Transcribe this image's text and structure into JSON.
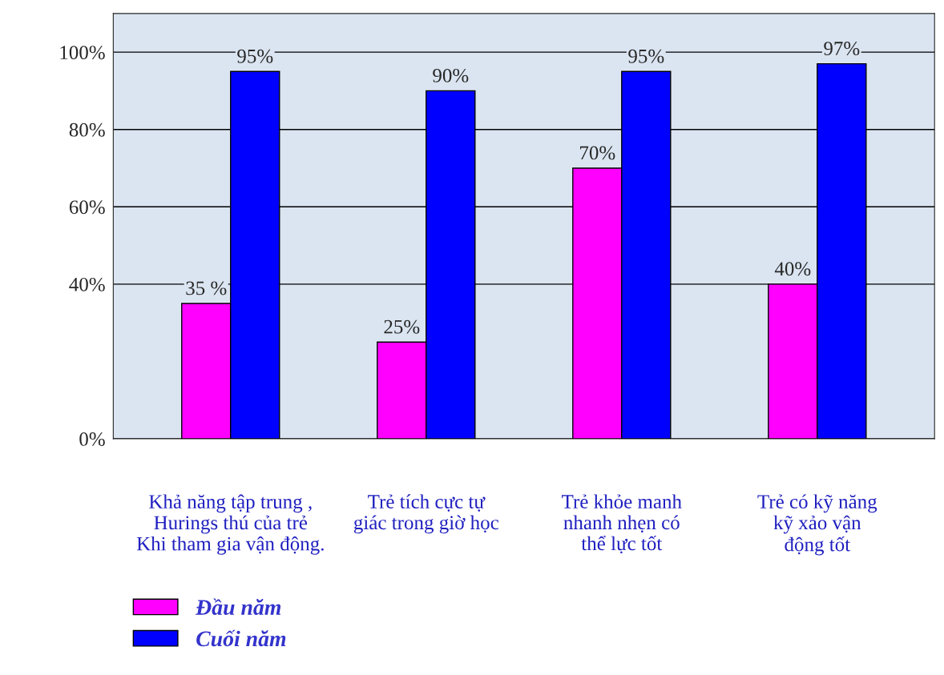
{
  "chart_data": {
    "type": "bar",
    "categories": [
      "Khả năng tập trung ,\nHurings thú của trẻ\nKhi tham gia vận động.",
      "Trẻ tích cực tự\ngiác trong giờ học",
      "Trẻ khỏe manh\nnhanh nhẹn có\nthể lực tốt",
      "Trẻ có kỹ năng\nkỹ xảo vận\nđộng tốt"
    ],
    "series": [
      {
        "name": "Đầu năm",
        "color": "#ff00ff",
        "values": [
          35,
          25,
          70,
          40
        ],
        "value_labels": [
          "35 %",
          "25%",
          "70%",
          "40%"
        ]
      },
      {
        "name": "Cuối năm",
        "color": "#0000ff",
        "values": [
          95,
          90,
          95,
          97
        ],
        "value_labels": [
          "95%",
          "90%",
          "95%",
          "97%"
        ]
      }
    ],
    "ylim": [
      0,
      110
    ],
    "yticks": [
      {
        "value": 0,
        "label": "0%"
      },
      {
        "value": 40,
        "label": "40%"
      },
      {
        "value": 60,
        "label": "60%"
      },
      {
        "value": 80,
        "label": "80%"
      },
      {
        "value": 100,
        "label": "100%"
      }
    ],
    "grid": "y",
    "legend": "bottom left"
  }
}
